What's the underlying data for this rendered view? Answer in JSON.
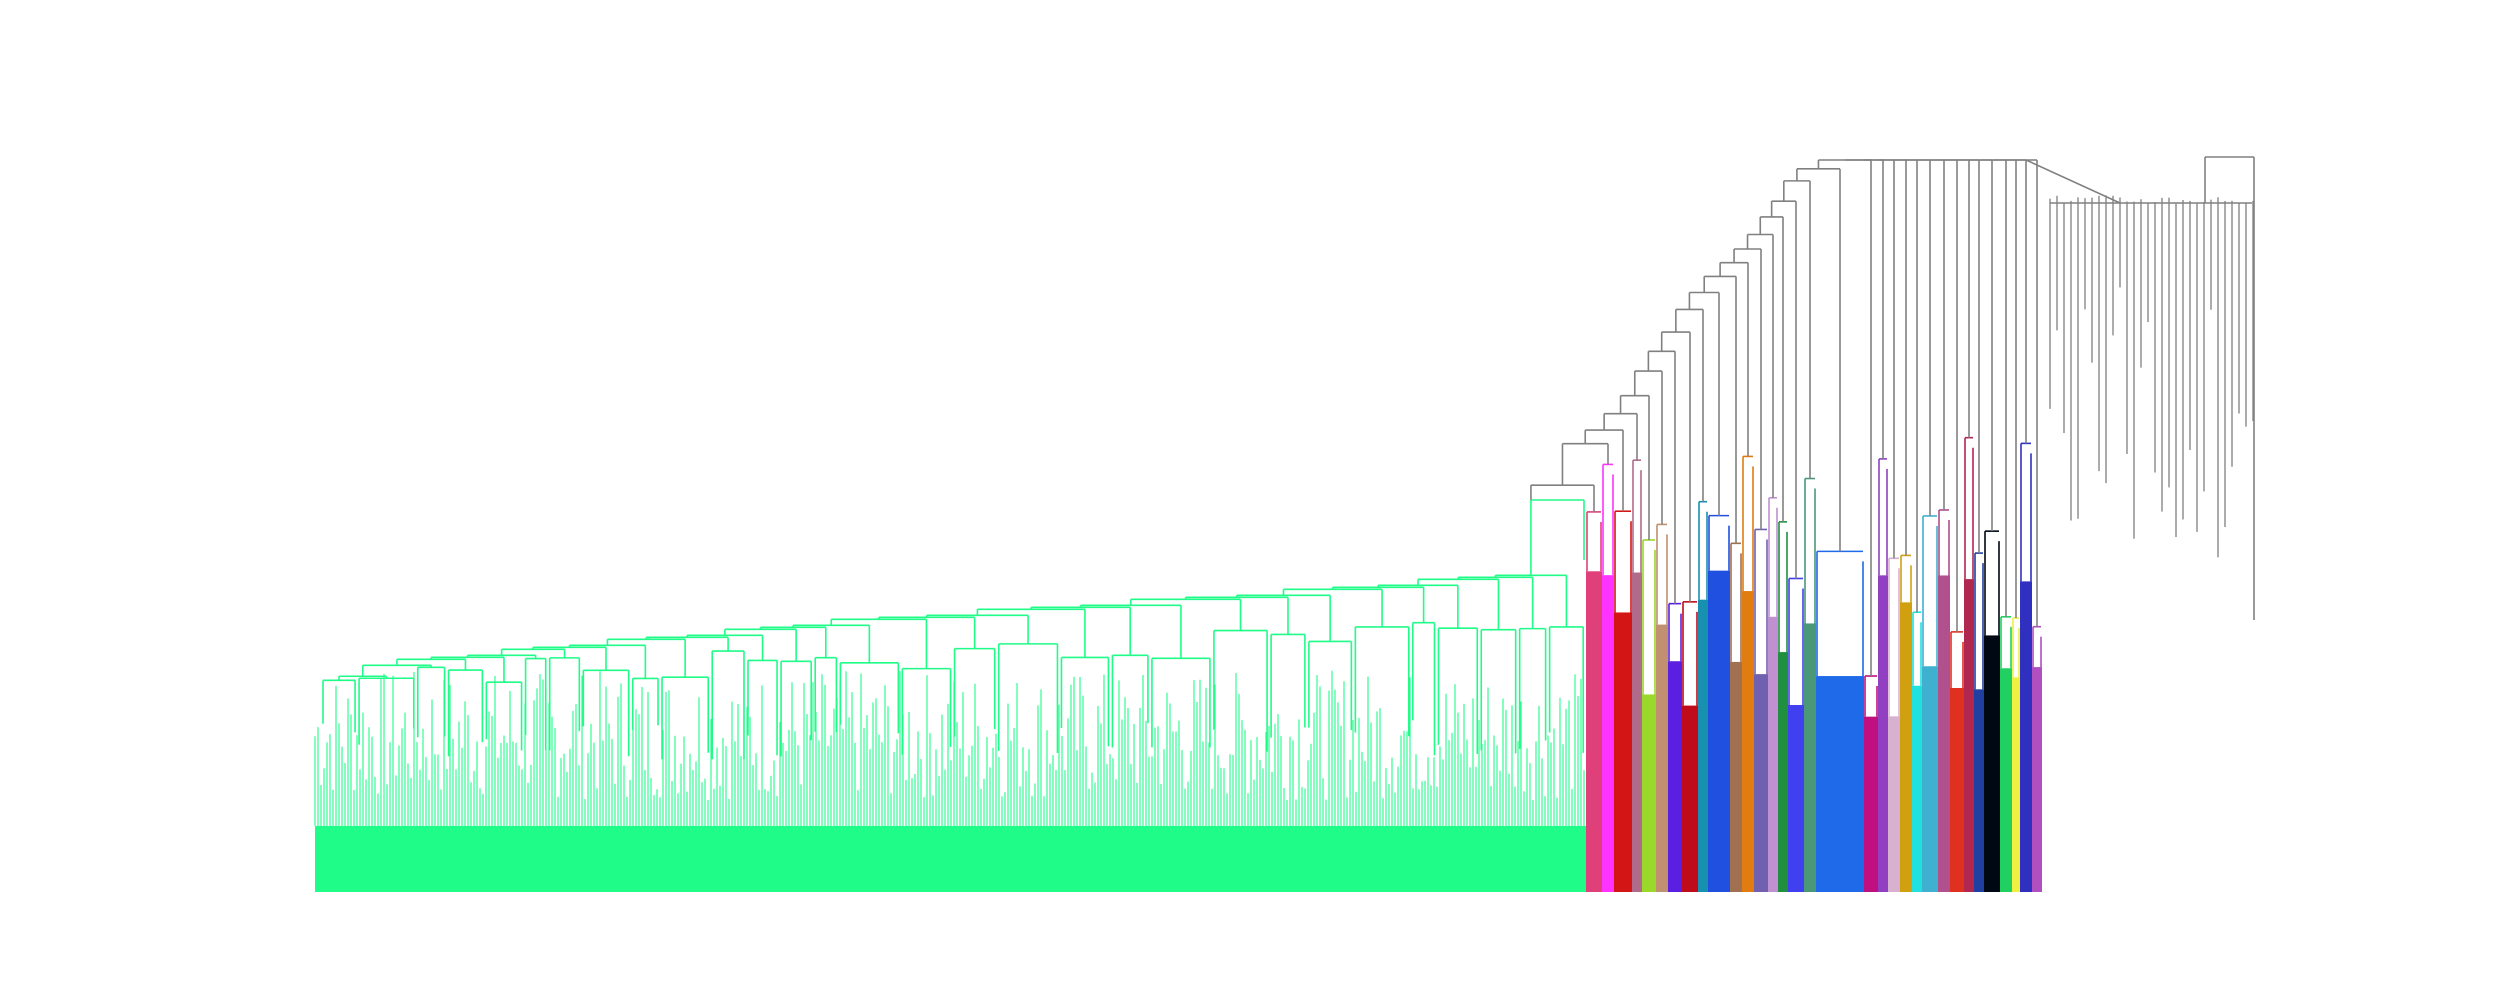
{
  "figure": {
    "kind": "dendrogram",
    "orientation": "top-down",
    "title": "",
    "axes_visible": false,
    "background": "#ffffff"
  },
  "colors": {
    "link_above_threshold": "#808080",
    "main_cluster": "#1ffc88",
    "clusters": [
      "#e0407a",
      "#ff33ff",
      "#d41515",
      "#b06a8a",
      "#9ad82a",
      "#c09070",
      "#5a1fe0",
      "#c00c1a",
      "#1890b0",
      "#2050e0",
      "#a07050",
      "#e07c10",
      "#7060b0",
      "#c090d0",
      "#209040",
      "#4040f0",
      "#4a9878",
      "#1e6ae8",
      "#c01080",
      "#9040c0",
      "#d8b0d0",
      "#d0a010",
      "#20e0e0",
      "#40b0d0",
      "#b0508c",
      "#e03020",
      "#b02850",
      "#1f40a0",
      "#000814",
      "#20d060",
      "#f0f040",
      "#3030c0",
      "#b050c0"
    ]
  }
}
